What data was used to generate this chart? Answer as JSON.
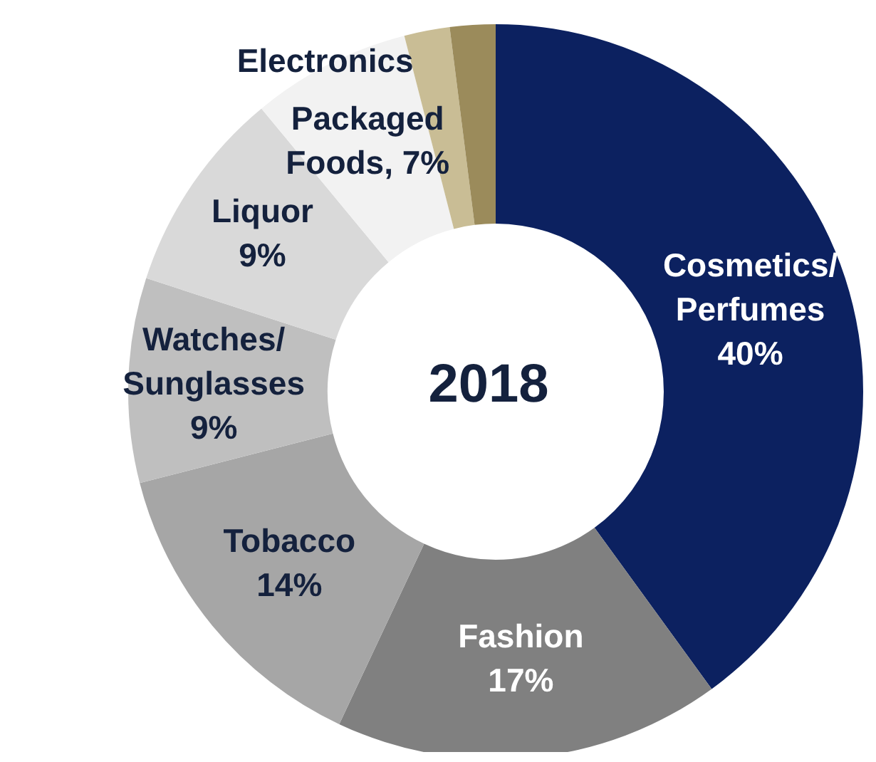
{
  "chart_data": {
    "type": "donut",
    "title": "2018",
    "categories": [
      "Cosmetics/ Perfumes",
      "Fashion",
      "Tobacco",
      "Watches/ Sunglasses",
      "Liquor",
      "Packaged Foods",
      "Electronics",
      null
    ],
    "values": [
      40,
      17,
      14,
      9,
      9,
      7,
      2,
      2
    ],
    "value_labels": [
      "40%",
      "17%",
      "14%",
      "9%",
      "9%",
      "7%",
      null,
      null
    ],
    "colors": [
      "#0c2160",
      "#808080",
      "#a6a6a6",
      "#bfbfbf",
      "#d9d9d9",
      "#f2f2f2",
      "#c9bd95",
      "#9b8b5b"
    ],
    "legend": false
  }
}
